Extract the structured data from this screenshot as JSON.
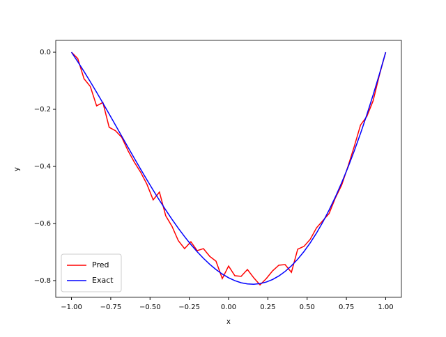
{
  "chart_data": {
    "type": "line",
    "xlabel": "x",
    "ylabel": "y",
    "x": [
      -1,
      -0.96,
      -0.92,
      -0.88,
      -0.84,
      -0.8,
      -0.76,
      -0.72,
      -0.68,
      -0.64,
      -0.6,
      -0.56,
      -0.52,
      -0.48,
      -0.44,
      -0.4,
      -0.36,
      -0.32,
      -0.28,
      -0.24,
      -0.2,
      -0.16,
      -0.12,
      -0.08,
      -0.04,
      0,
      0.04,
      0.08,
      0.12,
      0.16,
      0.2,
      0.24,
      0.28,
      0.32,
      0.36,
      0.4,
      0.44,
      0.48,
      0.52,
      0.56,
      0.6,
      0.64,
      0.68,
      0.72,
      0.76,
      0.8,
      0.84,
      0.88,
      0.92,
      0.96,
      1
    ],
    "series": [
      {
        "name": "Pred",
        "color": "#ff0000",
        "values": [
          0,
          -0.022,
          -0.093,
          -0.12,
          -0.188,
          -0.176,
          -0.263,
          -0.275,
          -0.298,
          -0.345,
          -0.385,
          -0.42,
          -0.462,
          -0.517,
          -0.49,
          -0.573,
          -0.61,
          -0.66,
          -0.688,
          -0.664,
          -0.695,
          -0.688,
          -0.715,
          -0.732,
          -0.793,
          -0.749,
          -0.783,
          -0.785,
          -0.761,
          -0.79,
          -0.815,
          -0.793,
          -0.766,
          -0.746,
          -0.744,
          -0.771,
          -0.69,
          -0.68,
          -0.655,
          -0.615,
          -0.59,
          -0.565,
          -0.51,
          -0.465,
          -0.4,
          -0.33,
          -0.255,
          -0.225,
          -0.17,
          -0.08,
          0
        ]
      },
      {
        "name": "Exact",
        "color": "#0000ff",
        "values": [
          0,
          -0.033,
          -0.0675,
          -0.1033,
          -0.1403,
          -0.178,
          -0.2164,
          -0.2551,
          -0.294,
          -0.3328,
          -0.3713,
          -0.4093,
          -0.4467,
          -0.4831,
          -0.5185,
          -0.5526,
          -0.5854,
          -0.6166,
          -0.6459,
          -0.6734,
          -0.6988,
          -0.7219,
          -0.7429,
          -0.7612,
          -0.777,
          -0.79,
          -0.8001,
          -0.8075,
          -0.8116,
          -0.8127,
          -0.8105,
          -0.805,
          -0.7961,
          -0.7837,
          -0.7678,
          -0.7482,
          -0.725,
          -0.6981,
          -0.6674,
          -0.6331,
          -0.5948,
          -0.5527,
          -0.5067,
          -0.4569,
          -0.4032,
          -0.3456,
          -0.2842,
          -0.2189,
          -0.1497,
          -0.0768,
          0
        ]
      }
    ],
    "xlim": [
      -1.1,
      1.1
    ],
    "ylim": [
      -0.8585,
      0.0415
    ],
    "xticks": [
      {
        "value": -1,
        "label": "−1.00"
      },
      {
        "value": -0.75,
        "label": "−0.75"
      },
      {
        "value": -0.5,
        "label": "−0.50"
      },
      {
        "value": -0.25,
        "label": "−0.25"
      },
      {
        "value": 0,
        "label": "0.00"
      },
      {
        "value": 0.25,
        "label": "0.25"
      },
      {
        "value": 0.5,
        "label": "0.50"
      },
      {
        "value": 0.75,
        "label": "0.75"
      },
      {
        "value": 1,
        "label": "1.00"
      }
    ],
    "yticks": [
      {
        "value": 0,
        "label": "0.0"
      },
      {
        "value": -0.2,
        "label": "−0.2"
      },
      {
        "value": -0.4,
        "label": "−0.4"
      },
      {
        "value": -0.6,
        "label": "−0.6"
      },
      {
        "value": -0.8,
        "label": "−0.8"
      }
    ],
    "legend": "lower left"
  }
}
